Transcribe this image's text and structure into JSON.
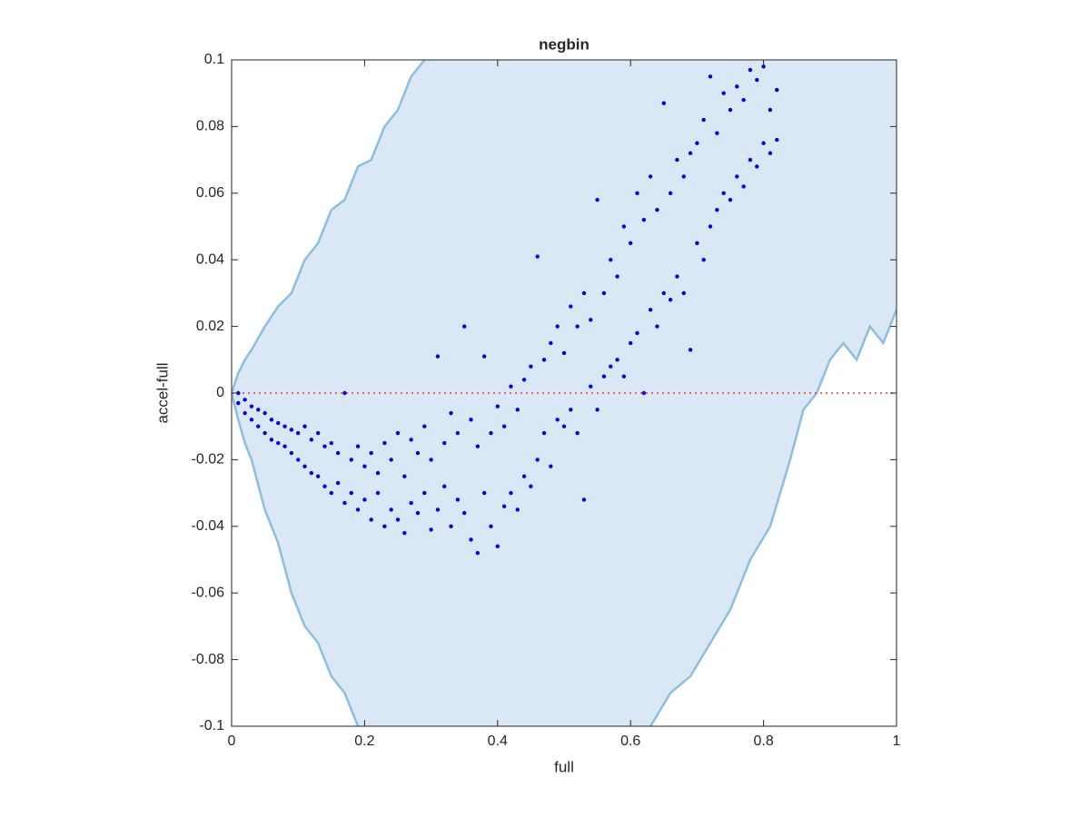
{
  "chart_data": {
    "type": "scatter",
    "title": "negbin",
    "xlabel": "full",
    "ylabel": "accel-full",
    "xlim": [
      0,
      1
    ],
    "ylim": [
      -0.1,
      0.1
    ],
    "xticks": [
      0,
      0.2,
      0.4,
      0.6,
      0.8,
      1
    ],
    "yticks": [
      -0.1,
      -0.08,
      -0.06,
      -0.04,
      -0.02,
      0,
      0.02,
      0.04,
      0.06,
      0.08,
      0.1
    ],
    "band_fill_color": "#dae8f5",
    "bands": [
      {
        "color": "#8bbfe0",
        "x": [
          0,
          0.01,
          0.02,
          0.03,
          0.05,
          0.07,
          0.09,
          0.11,
          0.13,
          0.15,
          0.17,
          0.19,
          0.21,
          0.23,
          0.25,
          0.27,
          0.29,
          0.31,
          0.33
        ],
        "y": [
          0,
          0.006,
          0.01,
          0.013,
          0.02,
          0.026,
          0.03,
          0.04,
          0.045,
          0.055,
          0.058,
          0.068,
          0.07,
          0.08,
          0.085,
          0.095,
          0.1,
          0.11,
          0.12
        ]
      },
      {
        "color": "#8bbfe0",
        "x": [
          0,
          0.01,
          0.02,
          0.03,
          0.05,
          0.07,
          0.09,
          0.11,
          0.13,
          0.15,
          0.17,
          0.19,
          0.21
        ],
        "y": [
          0,
          -0.008,
          -0.015,
          -0.02,
          -0.035,
          -0.045,
          -0.06,
          -0.07,
          -0.075,
          -0.085,
          -0.09,
          -0.1,
          -0.11
        ]
      },
      {
        "color": "#8bbfe0",
        "x": [
          0.6,
          0.63,
          0.66,
          0.69,
          0.72,
          0.75,
          0.78,
          0.81,
          0.84,
          0.86,
          0.88,
          0.9,
          0.92,
          0.94,
          0.96,
          0.98,
          1.0
        ],
        "y": [
          -0.11,
          -0.1,
          -0.09,
          -0.085,
          -0.075,
          -0.065,
          -0.05,
          -0.04,
          -0.02,
          -0.005,
          0.0,
          0.01,
          0.015,
          0.01,
          0.02,
          0.015,
          0.025
        ]
      }
    ],
    "reference_line": {
      "y": 0,
      "color": "#ff3030"
    },
    "points": {
      "color": "#0000ee",
      "x": [
        0.01,
        0.02,
        0.03,
        0.04,
        0.05,
        0.06,
        0.07,
        0.08,
        0.09,
        0.1,
        0.11,
        0.12,
        0.13,
        0.14,
        0.15,
        0.16,
        0.17,
        0.18,
        0.19,
        0.2,
        0.21,
        0.22,
        0.23,
        0.24,
        0.25,
        0.26,
        0.27,
        0.28,
        0.29,
        0.3,
        0.31,
        0.32,
        0.33,
        0.34,
        0.35,
        0.36,
        0.37,
        0.38,
        0.39,
        0.4,
        0.41,
        0.42,
        0.43,
        0.44,
        0.45,
        0.46,
        0.47,
        0.48,
        0.49,
        0.5,
        0.51,
        0.52,
        0.53,
        0.54,
        0.55,
        0.56,
        0.57,
        0.58,
        0.59,
        0.6,
        0.61,
        0.62,
        0.63,
        0.64,
        0.65,
        0.66,
        0.67,
        0.68,
        0.69,
        0.7,
        0.71,
        0.72,
        0.73,
        0.74,
        0.75,
        0.76,
        0.77,
        0.78,
        0.79,
        0.8,
        0.81,
        0.82,
        0.01,
        0.02,
        0.03,
        0.04,
        0.05,
        0.06,
        0.07,
        0.08,
        0.09,
        0.1,
        0.11,
        0.12,
        0.13,
        0.14,
        0.15,
        0.16,
        0.17,
        0.18,
        0.19,
        0.2,
        0.21,
        0.22,
        0.23,
        0.24,
        0.25,
        0.26,
        0.27,
        0.28,
        0.29,
        0.3,
        0.31,
        0.32,
        0.33,
        0.34,
        0.35,
        0.36,
        0.37,
        0.38,
        0.39,
        0.4,
        0.41,
        0.42,
        0.43,
        0.44,
        0.45,
        0.46,
        0.47,
        0.48,
        0.49,
        0.5,
        0.51,
        0.52,
        0.53,
        0.54,
        0.55,
        0.56,
        0.57,
        0.58,
        0.59,
        0.6,
        0.61,
        0.62,
        0.63,
        0.64,
        0.65,
        0.66,
        0.67,
        0.68,
        0.69,
        0.7,
        0.71,
        0.72,
        0.73,
        0.74,
        0.75,
        0.76,
        0.77,
        0.78,
        0.79,
        0.8,
        0.81,
        0.82
      ],
      "y": [
        -0.003,
        -0.006,
        -0.008,
        -0.01,
        -0.012,
        -0.014,
        -0.015,
        -0.016,
        -0.018,
        -0.02,
        -0.022,
        -0.024,
        -0.025,
        -0.028,
        -0.03,
        -0.027,
        -0.033,
        -0.03,
        -0.035,
        -0.032,
        -0.038,
        -0.03,
        -0.04,
        -0.035,
        -0.038,
        -0.042,
        -0.033,
        -0.036,
        -0.03,
        -0.041,
        -0.035,
        -0.028,
        -0.04,
        -0.032,
        -0.036,
        -0.044,
        -0.048,
        -0.03,
        -0.04,
        -0.046,
        -0.034,
        -0.03,
        -0.035,
        -0.025,
        -0.028,
        -0.02,
        -0.012,
        -0.022,
        -0.008,
        -0.01,
        -0.005,
        -0.012,
        -0.032,
        0.002,
        -0.005,
        0.005,
        0.008,
        0.01,
        0.005,
        0.015,
        0.018,
        0.0,
        0.025,
        0.02,
        0.03,
        0.028,
        0.035,
        0.03,
        0.013,
        0.045,
        0.04,
        0.05,
        0.055,
        0.06,
        0.058,
        0.065,
        0.062,
        0.07,
        0.068,
        0.075,
        0.072,
        0.076,
        0.0,
        -0.002,
        -0.004,
        -0.005,
        -0.006,
        -0.008,
        -0.009,
        -0.01,
        -0.011,
        -0.012,
        -0.01,
        -0.014,
        -0.012,
        -0.016,
        -0.015,
        -0.018,
        0.0,
        -0.02,
        -0.016,
        -0.022,
        -0.018,
        -0.024,
        -0.015,
        -0.02,
        -0.012,
        -0.025,
        -0.014,
        -0.018,
        -0.01,
        -0.02,
        0.011,
        -0.015,
        -0.006,
        -0.012,
        0.02,
        -0.008,
        -0.016,
        0.011,
        -0.012,
        -0.004,
        -0.01,
        0.002,
        -0.005,
        0.004,
        0.008,
        0.041,
        0.01,
        0.015,
        0.02,
        0.012,
        0.026,
        0.02,
        0.03,
        0.022,
        0.058,
        0.03,
        0.04,
        0.035,
        0.05,
        0.045,
        0.06,
        0.052,
        0.065,
        0.055,
        0.087,
        0.06,
        0.07,
        0.065,
        0.072,
        0.075,
        0.082,
        0.095,
        0.078,
        0.09,
        0.085,
        0.092,
        0.088,
        0.097,
        0.094,
        0.098,
        0.085,
        0.091
      ]
    }
  }
}
